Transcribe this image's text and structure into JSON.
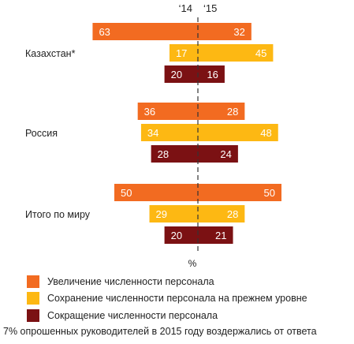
{
  "chart_data": {
    "type": "bar",
    "orientation": "horizontal-diverging",
    "left_label": "‘14",
    "right_label": "‘15",
    "axis_unit": "%",
    "groups": [
      {
        "name": "Казахстан*",
        "values_2014": [
          63,
          17,
          20
        ],
        "values_2015": [
          32,
          45,
          16
        ]
      },
      {
        "name": "Россия",
        "values_2014": [
          36,
          34,
          28
        ],
        "values_2015": [
          28,
          48,
          24
        ]
      },
      {
        "name": "Итого по миру",
        "values_2014": [
          50,
          29,
          20
        ],
        "values_2015": [
          50,
          28,
          21
        ]
      }
    ],
    "series": [
      {
        "name": "Увеличение численности персонала",
        "color": "#F26B21"
      },
      {
        "name": "Сохранение численности персонала на прежнем уровне",
        "color": "#FDB813"
      },
      {
        "name": "Сокращение численности персонала",
        "color": "#7B1113"
      }
    ],
    "legend_placement": "bottom-left"
  },
  "footnote": "7% опрошенных руководителей в 2015 году воздержались от ответа"
}
